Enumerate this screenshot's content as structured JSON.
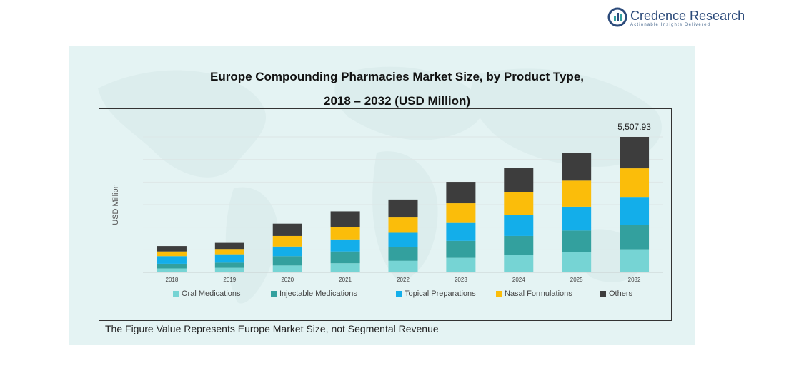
{
  "brand": {
    "name": "Credence Research",
    "tagline": "Actionable Insights Delivered"
  },
  "note": "The Figure Value Represents Europe Market Size, not Segmental Revenue",
  "colors": {
    "panel": "#e4f3f3",
    "series": [
      "#76d4d4",
      "#33a09e",
      "#13aeea",
      "#fbbd0a",
      "#3d3d3d"
    ]
  },
  "chart_data": {
    "type": "bar",
    "stacked": true,
    "title_line1": "Europe Compounding Pharmacies Market Size, by Product Type,",
    "title_line2": "2018 – 2032 (USD Million)",
    "xlabel": "",
    "ylabel": "USD Million",
    "ylim": [
      0,
      5507.93
    ],
    "grid": true,
    "legend_position": "bottom",
    "categories": [
      "2018",
      "2019",
      "2020",
      "2021",
      "2022",
      "2023",
      "2024",
      "2025",
      "2032"
    ],
    "series": [
      {
        "name": "Oral Medications",
        "values": [
          160,
          185,
          280,
          370,
          470,
          590,
          700,
          820,
          940
        ]
      },
      {
        "name": "Injectable Medications",
        "values": [
          190,
          210,
          380,
          480,
          560,
          690,
          780,
          880,
          1000
        ]
      },
      {
        "name": "Topical Preparations",
        "values": [
          310,
          340,
          390,
          490,
          580,
          730,
          840,
          970,
          1100
        ]
      },
      {
        "name": "Nasal Formulations",
        "values": [
          190,
          215,
          430,
          510,
          620,
          800,
          930,
          1060,
          1190
        ]
      },
      {
        "name": "Others",
        "values": [
          220,
          250,
          500,
          630,
          730,
          870,
          990,
          1140,
          1277.93
        ]
      }
    ],
    "annotation": "5,507.93"
  }
}
